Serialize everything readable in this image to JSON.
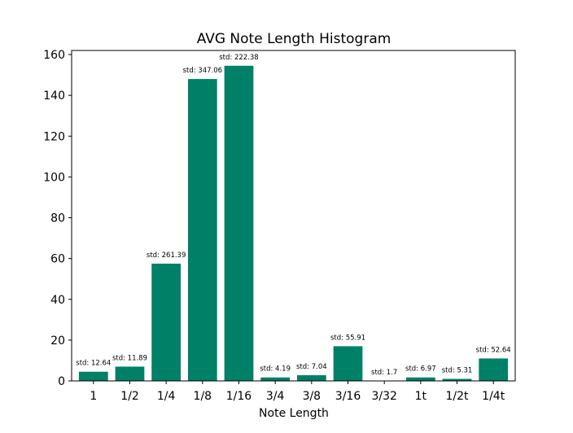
{
  "chart_data": {
    "type": "bar",
    "title": "AVG Note Length Histogram",
    "xlabel": "Note Length",
    "ylabel": "",
    "ylim": [
      0,
      162
    ],
    "yticks": [
      0,
      20,
      40,
      60,
      80,
      100,
      120,
      140,
      160
    ],
    "grid": false,
    "bar_color": "#008066",
    "categories": [
      "1",
      "1/2",
      "1/4",
      "1/8",
      "1/16",
      "3/4",
      "3/8",
      "3/16",
      "3/32",
      "1t",
      "1/2t",
      "1/4t"
    ],
    "values": [
      4.5,
      7,
      57.5,
      148,
      154.5,
      1.7,
      2.8,
      17,
      0,
      1.7,
      1,
      11
    ],
    "data_labels": [
      "std: 12.64",
      "std: 11.89",
      "std: 261.39",
      "std: 347.06",
      "std: 222.38",
      "std: 4.19",
      "std: 7.04",
      "std: 55.91",
      "std: 1.7",
      "std: 6.97",
      "std: 5.31",
      "std: 52.64"
    ]
  }
}
